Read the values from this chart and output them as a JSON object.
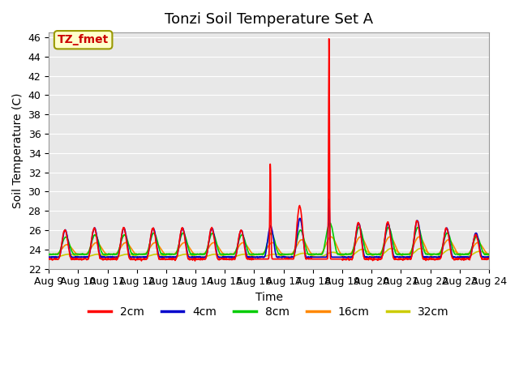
{
  "title": "Tonzi Soil Temperature Set A",
  "xlabel": "Time",
  "ylabel": "Soil Temperature (C)",
  "ylim": [
    22,
    46.5
  ],
  "y_ticks": [
    22,
    24,
    26,
    28,
    30,
    32,
    34,
    36,
    38,
    40,
    42,
    44,
    46
  ],
  "x_tick_labels": [
    "Aug 9",
    "Aug 10",
    "Aug 11",
    "Aug 12",
    "Aug 13",
    "Aug 14",
    "Aug 15",
    "Aug 16",
    "Aug 17",
    "Aug 18",
    "Aug 19",
    "Aug 20",
    "Aug 21",
    "Aug 22",
    "Aug 23",
    "Aug 24"
  ],
  "legend_labels": [
    "2cm",
    "4cm",
    "8cm",
    "16cm",
    "32cm"
  ],
  "legend_colors": [
    "#ff0000",
    "#0000cc",
    "#00cc00",
    "#ff8800",
    "#cccc00"
  ],
  "annotation_label": "TZ_fmet",
  "annotation_color": "#cc0000",
  "annotation_bg": "#ffffcc",
  "background_color": "#e8e8e8",
  "title_fontsize": 13,
  "label_fontsize": 10,
  "tick_fontsize": 9,
  "line_width": 1.2
}
